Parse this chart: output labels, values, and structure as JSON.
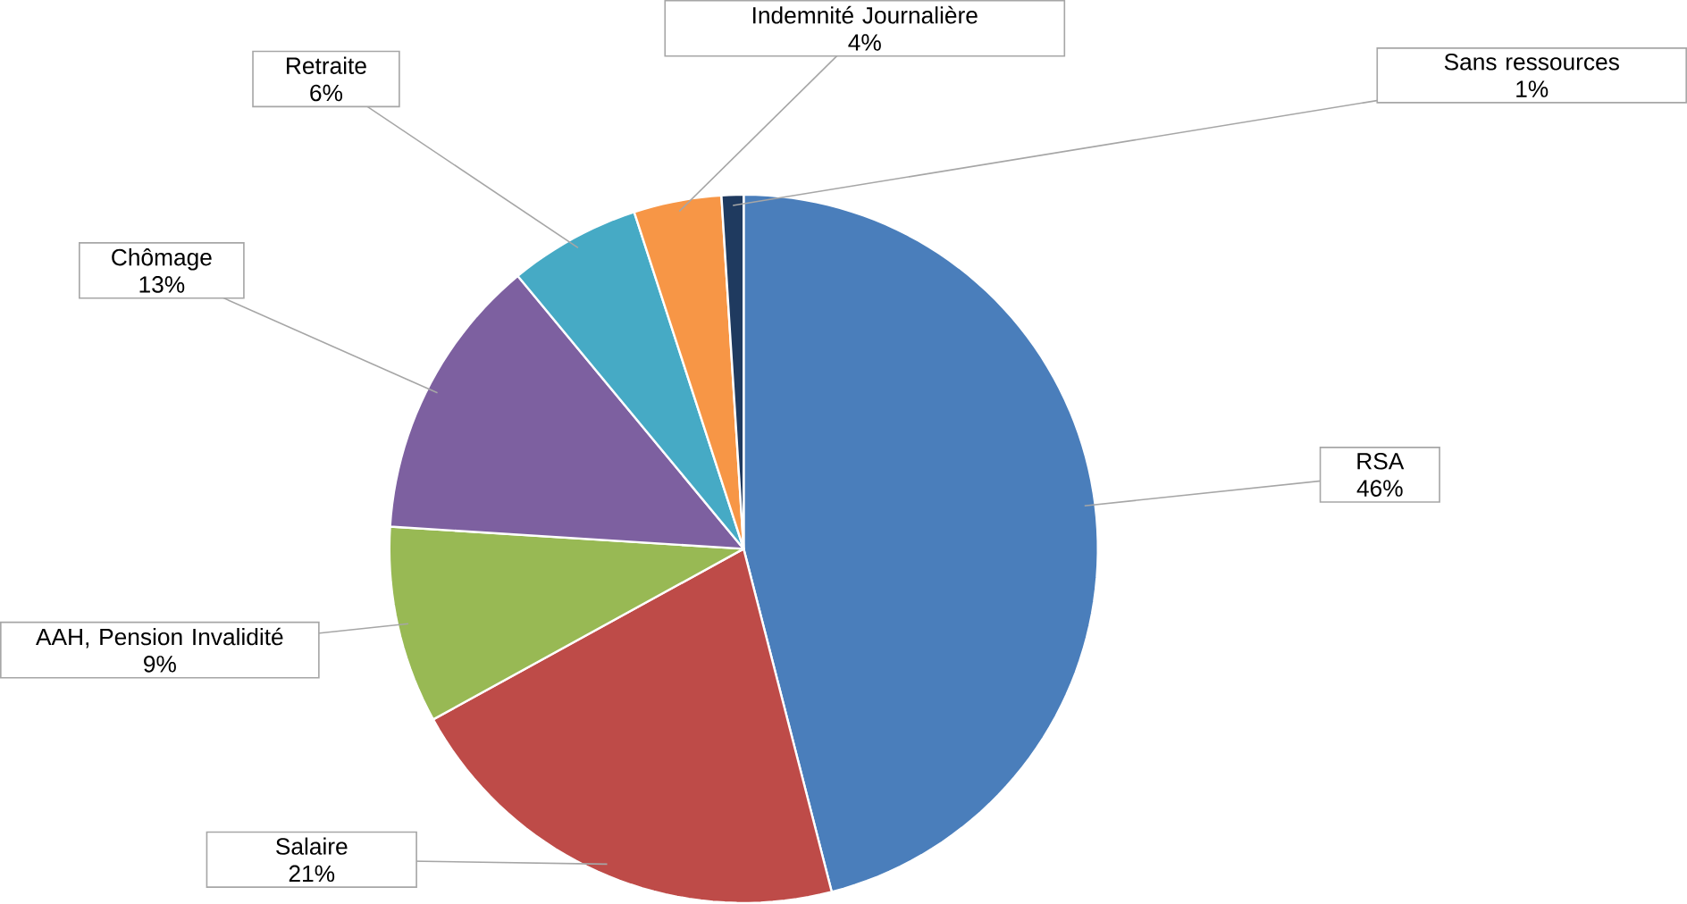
{
  "chart_data": {
    "type": "pie",
    "categories": [
      "RSA",
      "Salaire",
      "AAH, Pension Invalidité",
      "Chômage",
      "Retraite",
      "Indemnité Journalière",
      "Sans ressources"
    ],
    "values": [
      46,
      21,
      9,
      13,
      6,
      4,
      1
    ],
    "value_labels": [
      "46%",
      "21%",
      "9%",
      "13%",
      "6%",
      "4%",
      "1%"
    ],
    "colors": [
      "#4a7ebb",
      "#be4b48",
      "#98b954",
      "#7d60a0",
      "#46aac5",
      "#f79646",
      "#1f3a5f"
    ]
  }
}
